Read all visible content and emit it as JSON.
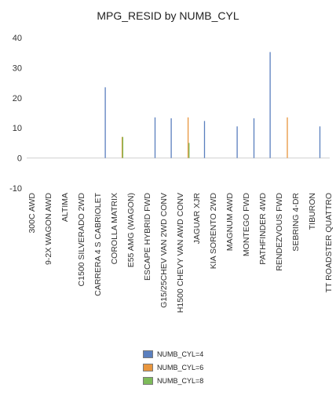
{
  "chart_data": {
    "type": "bar",
    "title": "MPG_RESID by NUMB_CYL",
    "xlabel": "",
    "ylabel": "",
    "ylim": [
      -10,
      40
    ],
    "yticks": [
      -10,
      0,
      10,
      20,
      30,
      40
    ],
    "grid": false,
    "legend_position": "bottom",
    "categories": [
      "300C AWD",
      "9-2X WAGON AWD",
      "ALTIMA",
      "C1500 SILVERADO 2WD",
      "CARRERA 4 S CABRIOLET",
      "COROLLA MATRIX",
      "E55 AMG (WAGON)",
      "ESCAPE HYBRID FWD",
      "G15/25CHEV VAN 2WD CONV",
      "H1500 CHEVY VAN AWD CONV",
      "JAGUAR XJR",
      "KIA SORENTO 2WD",
      "MAGNUM AWD",
      "MONTEGO FWD",
      "PATHFINDER 4WD",
      "RENDEZVOUS FWD",
      "SEBRING 4-DR",
      "TIBURON",
      "TT ROADSTER QUATTRO"
    ],
    "series": [
      {
        "name": "NUMB_CYL=4",
        "color": "#5a7fbe",
        "notable_values": [
          {
            "after": "CARRERA 4 S CABRIOLET",
            "value": 23.5
          },
          {
            "after": "ESCAPE HYBRID FWD",
            "value": 13.5
          },
          {
            "after": "G15/25CHEV VAN 2WD CONV",
            "value": 13.2
          },
          {
            "after": "JAGUAR XJR",
            "value": 12.3
          },
          {
            "after": "MAGNUM AWD",
            "value": 10.5
          },
          {
            "after": "MONTEGO FWD",
            "value": 13.2
          },
          {
            "after": "PATHFINDER 4WD",
            "value": 35.2
          },
          {
            "after": "TIBURON",
            "value": 10.5
          }
        ]
      },
      {
        "name": "NUMB_CYL=6",
        "color": "#e8963e",
        "notable_values": [
          {
            "after": "H1500 CHEVY VAN AWD CONV",
            "value": 13.5
          },
          {
            "after": "RENDEZVOUS FWD",
            "value": 13.5
          },
          {
            "after": "COROLLA MATRIX",
            "value": 7.0
          }
        ]
      },
      {
        "name": "NUMB_CYL=8",
        "color": "#7dbb5a",
        "notable_values": [
          {
            "after": "COROLLA MATRIX",
            "value": 7.0
          },
          {
            "after": "H1500 CHEVY VAN AWD CONV",
            "value": 5.0
          }
        ]
      }
    ]
  }
}
